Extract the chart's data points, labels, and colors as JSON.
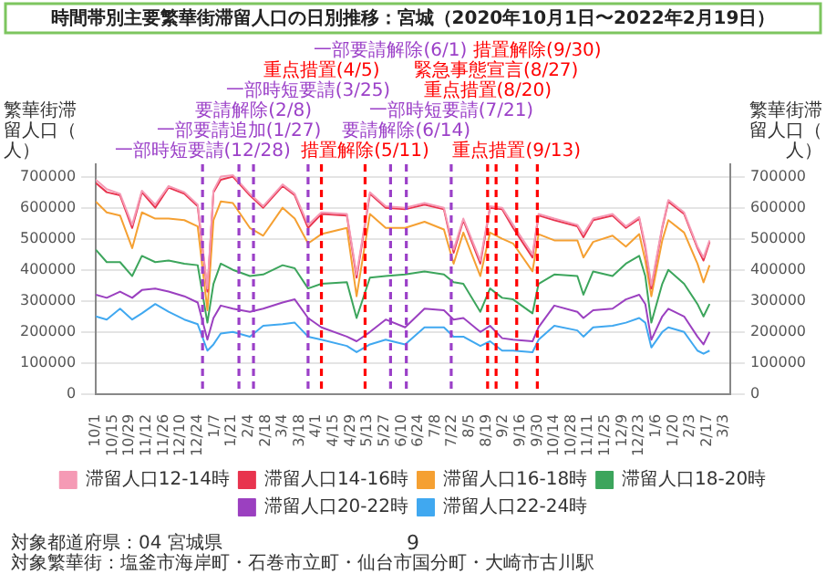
{
  "chart_data": {
    "type": "line",
    "title": "時間帯別主要繁華街滞留人口の日別推移：宮城（2020年10月1日〜2022年2月19日）",
    "ylabel": "繁華街滞留人口（人）",
    "y2label": "繁華街滞留人口（人）",
    "x": [
      "2020-10-01",
      "2020-10-10",
      "2020-10-21",
      "2020-10-31",
      "2020-11-08",
      "2020-11-19",
      "2020-11-30",
      "2020-12-13",
      "2020-12-24",
      "2021-01-01",
      "2021-01-06",
      "2021-01-12",
      "2021-01-22",
      "2021-02-05",
      "2021-02-16",
      "2021-03-04",
      "2021-03-14",
      "2021-03-25",
      "2021-04-05",
      "2021-04-26",
      "2021-05-04",
      "2021-05-15",
      "2021-05-28",
      "2021-06-13",
      "2021-06-29",
      "2021-07-15",
      "2021-07-23",
      "2021-07-31",
      "2021-08-14",
      "2021-08-22",
      "2021-09-01",
      "2021-09-10",
      "2021-09-26",
      "2021-10-01",
      "2021-10-14",
      "2021-11-02",
      "2021-11-07",
      "2021-11-15",
      "2021-12-01",
      "2021-12-12",
      "2021-12-23",
      "2021-12-28",
      "2022-01-02",
      "2022-01-11",
      "2022-01-16",
      "2022-01-29",
      "2022-02-09",
      "2022-02-14",
      "2022-02-19"
    ],
    "series": [
      {
        "name": "滞留人口12-14時",
        "color": "#f59ab5",
        "values": [
          690000,
          660000,
          645000,
          545000,
          655000,
          610000,
          670000,
          650000,
          610000,
          340000,
          655000,
          700000,
          705000,
          645000,
          605000,
          675000,
          645000,
          545000,
          585000,
          580000,
          385000,
          650000,
          605000,
          600000,
          615000,
          600000,
          465000,
          565000,
          430000,
          605000,
          600000,
          545000,
          450000,
          580000,
          565000,
          545000,
          515000,
          565000,
          580000,
          540000,
          570000,
          480000,
          350000,
          540000,
          625000,
          585000,
          475000,
          440000,
          495000
        ]
      },
      {
        "name": "滞留人口14-16時",
        "color": "#e8344e",
        "values": [
          680000,
          650000,
          640000,
          535000,
          650000,
          600000,
          665000,
          645000,
          605000,
          330000,
          650000,
          690000,
          700000,
          640000,
          600000,
          670000,
          640000,
          535000,
          580000,
          575000,
          375000,
          645000,
          600000,
          595000,
          610000,
          595000,
          455000,
          560000,
          420000,
          600000,
          595000,
          535000,
          440000,
          575000,
          560000,
          540000,
          505000,
          560000,
          575000,
          535000,
          565000,
          470000,
          340000,
          535000,
          620000,
          580000,
          470000,
          430000,
          490000
        ]
      },
      {
        "name": "滞留人口16-18時",
        "color": "#f5a032",
        "values": [
          620000,
          585000,
          575000,
          470000,
          585000,
          565000,
          565000,
          560000,
          540000,
          270000,
          560000,
          620000,
          615000,
          535000,
          510000,
          600000,
          565000,
          485000,
          515000,
          535000,
          315000,
          580000,
          535000,
          535000,
          555000,
          530000,
          420000,
          520000,
          380000,
          520000,
          500000,
          485000,
          395000,
          515000,
          495000,
          495000,
          440000,
          490000,
          510000,
          475000,
          515000,
          430000,
          315000,
          495000,
          560000,
          520000,
          420000,
          360000,
          415000
        ]
      },
      {
        "name": "滞留人口18-20時",
        "color": "#3ca55c",
        "values": [
          465000,
          425000,
          425000,
          380000,
          445000,
          425000,
          430000,
          420000,
          415000,
          230000,
          355000,
          420000,
          400000,
          380000,
          385000,
          415000,
          405000,
          340000,
          355000,
          360000,
          245000,
          375000,
          380000,
          385000,
          395000,
          385000,
          360000,
          355000,
          265000,
          340000,
          310000,
          305000,
          260000,
          355000,
          385000,
          380000,
          320000,
          395000,
          380000,
          420000,
          445000,
          380000,
          230000,
          355000,
          400000,
          355000,
          290000,
          250000,
          290000
        ]
      },
      {
        "name": "滞留人口20-22時",
        "color": "#9b40c0",
        "values": [
          320000,
          310000,
          330000,
          310000,
          335000,
          340000,
          330000,
          315000,
          295000,
          175000,
          245000,
          285000,
          275000,
          265000,
          275000,
          295000,
          305000,
          245000,
          215000,
          185000,
          170000,
          200000,
          240000,
          215000,
          275000,
          270000,
          240000,
          245000,
          200000,
          220000,
          180000,
          175000,
          170000,
          215000,
          285000,
          265000,
          245000,
          270000,
          275000,
          305000,
          320000,
          290000,
          175000,
          250000,
          275000,
          250000,
          185000,
          160000,
          200000
        ]
      },
      {
        "name": "滞留人口22-24時",
        "color": "#40a8f0",
        "values": [
          250000,
          240000,
          275000,
          240000,
          260000,
          290000,
          265000,
          240000,
          225000,
          140000,
          160000,
          195000,
          200000,
          185000,
          220000,
          225000,
          230000,
          185000,
          175000,
          155000,
          135000,
          160000,
          175000,
          160000,
          215000,
          215000,
          185000,
          185000,
          155000,
          170000,
          140000,
          140000,
          135000,
          175000,
          220000,
          205000,
          185000,
          215000,
          220000,
          230000,
          245000,
          230000,
          150000,
          200000,
          215000,
          200000,
          140000,
          130000,
          140000
        ]
      }
    ],
    "xlim": [
      "2020-10-01",
      "2022-03-08"
    ],
    "xticks": [
      {
        "value": "2020-10-01",
        "label": "10/1"
      },
      {
        "value": "2020-10-15",
        "label": "10/15"
      },
      {
        "value": "2020-10-29",
        "label": "10/29"
      },
      {
        "value": "2020-11-12",
        "label": "11/12"
      },
      {
        "value": "2020-11-26",
        "label": "11/26"
      },
      {
        "value": "2020-12-10",
        "label": "12/10"
      },
      {
        "value": "2020-12-24",
        "label": "12/24"
      },
      {
        "value": "2021-01-07",
        "label": "1/7"
      },
      {
        "value": "2021-01-21",
        "label": "1/21"
      },
      {
        "value": "2021-02-04",
        "label": "2/4"
      },
      {
        "value": "2021-02-18",
        "label": "2/18"
      },
      {
        "value": "2021-03-04",
        "label": "3/4"
      },
      {
        "value": "2021-03-18",
        "label": "3/18"
      },
      {
        "value": "2021-04-01",
        "label": "4/1"
      },
      {
        "value": "2021-04-15",
        "label": "4/15"
      },
      {
        "value": "2021-04-29",
        "label": "4/29"
      },
      {
        "value": "2021-05-13",
        "label": "5/13"
      },
      {
        "value": "2021-05-27",
        "label": "5/27"
      },
      {
        "value": "2021-06-10",
        "label": "6/10"
      },
      {
        "value": "2021-06-24",
        "label": "6/24"
      },
      {
        "value": "2021-07-08",
        "label": "7/8"
      },
      {
        "value": "2021-07-22",
        "label": "7/22"
      },
      {
        "value": "2021-08-05",
        "label": "8/5"
      },
      {
        "value": "2021-08-19",
        "label": "8/19"
      },
      {
        "value": "2021-09-02",
        "label": "9/2"
      },
      {
        "value": "2021-09-16",
        "label": "9/16"
      },
      {
        "value": "2021-09-30",
        "label": "9/30"
      },
      {
        "value": "2021-10-14",
        "label": "10/14"
      },
      {
        "value": "2021-10-28",
        "label": "10/28"
      },
      {
        "value": "2021-11-11",
        "label": "11/11"
      },
      {
        "value": "2021-11-25",
        "label": "11/25"
      },
      {
        "value": "2021-12-09",
        "label": "12/9"
      },
      {
        "value": "2021-12-23",
        "label": "12/23"
      },
      {
        "value": "2022-01-06",
        "label": "1/6"
      },
      {
        "value": "2022-01-20",
        "label": "1/20"
      },
      {
        "value": "2022-02-03",
        "label": "2/3"
      },
      {
        "value": "2022-02-17",
        "label": "2/17"
      },
      {
        "value": "2022-03-03",
        "label": "3/3"
      }
    ],
    "ylim": [
      0,
      740000
    ],
    "yticks": [
      0,
      100000,
      200000,
      300000,
      400000,
      500000,
      600000,
      700000
    ],
    "y2lim": [
      0,
      740000
    ],
    "y2ticks": [
      0,
      100000,
      200000,
      300000,
      400000,
      500000,
      600000,
      700000
    ],
    "grid": "y",
    "legend": "bottom",
    "marker": "none",
    "line_style": "solid",
    "ref_lines": [
      {
        "axis": "x",
        "value": "2020-12-28",
        "label": "一部時短要請(12/28)",
        "color": "#9b40c8",
        "line_style": "dashed"
      },
      {
        "axis": "x",
        "value": "2021-01-27",
        "label": "一部要請追加(1/27)",
        "color": "#9b40c8",
        "line_style": "dashed"
      },
      {
        "axis": "x",
        "value": "2021-02-08",
        "label": "要請解除(2/8)",
        "color": "#9b40c8",
        "line_style": "dashed"
      },
      {
        "axis": "x",
        "value": "2021-03-25",
        "label": "一部時短要請(3/25)",
        "color": "#9b40c8",
        "line_style": "dashed"
      },
      {
        "axis": "x",
        "value": "2021-04-05",
        "label": "重点措置(4/5)",
        "color": "#ff0000",
        "line_style": "dashed"
      },
      {
        "axis": "x",
        "value": "2021-05-11",
        "label": "措置解除(5/11)",
        "color": "#ff0000",
        "line_style": "dashed"
      },
      {
        "axis": "x",
        "value": "2021-06-01",
        "label": "一部要請解除(6/1)",
        "color": "#9b40c8",
        "line_style": "dashed"
      },
      {
        "axis": "x",
        "value": "2021-06-14",
        "label": "要請解除(6/14)",
        "color": "#9b40c8",
        "line_style": "dashed"
      },
      {
        "axis": "x",
        "value": "2021-07-21",
        "label": "一部時短要請(7/21)",
        "color": "#9b40c8",
        "line_style": "dashed"
      },
      {
        "axis": "x",
        "value": "2021-08-20",
        "label": "重点措置(8/20)",
        "color": "#ff0000",
        "line_style": "dashed"
      },
      {
        "axis": "x",
        "value": "2021-08-27",
        "label": "緊急事態宣言(8/27)",
        "color": "#ff0000",
        "line_style": "dashed"
      },
      {
        "axis": "x",
        "value": "2021-09-13",
        "label": "重点措置(9/13)",
        "color": "#ff0000",
        "line_style": "dashed"
      },
      {
        "axis": "x",
        "value": "2021-09-30",
        "label": "措置解除(9/30)",
        "color": "#ff0000",
        "line_style": "dashed"
      }
    ],
    "annotations": [
      "対象都道府県：04 宮城県",
      "対象繁華街：塩釜市海岸町・石巻市立町・仙台市国分町・大崎市古川駅",
      "9"
    ]
  }
}
